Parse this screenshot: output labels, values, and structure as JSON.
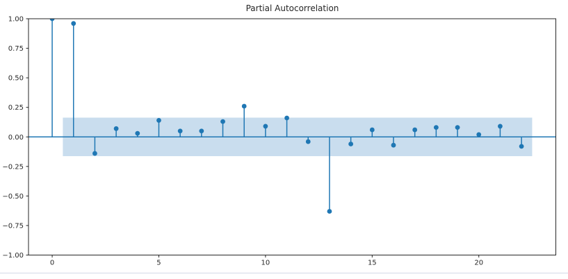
{
  "title": "Partial Autocorrelation",
  "colors": {
    "stem": "#1f77b4",
    "marker": "#1f77b4",
    "band": "#c9ddee",
    "spine": "#262626",
    "tick": "#262626",
    "text": "#262626",
    "background": "#ffffff",
    "window_edge_line": "#dfe3ed"
  },
  "chart_data": {
    "type": "stem",
    "title": "Partial Autocorrelation",
    "x": [
      0,
      1,
      2,
      3,
      4,
      5,
      6,
      7,
      8,
      9,
      10,
      11,
      12,
      13,
      14,
      15,
      16,
      17,
      18,
      19,
      20,
      21,
      22
    ],
    "values": [
      1.0,
      0.96,
      -0.14,
      0.07,
      0.03,
      0.14,
      0.05,
      0.05,
      0.13,
      0.26,
      0.09,
      0.16,
      -0.04,
      -0.63,
      -0.06,
      0.06,
      -0.07,
      0.06,
      0.08,
      0.08,
      0.02,
      0.09,
      -0.08
    ],
    "confidence_band": {
      "lower": -0.163,
      "upper": 0.163,
      "x_start": 0.5,
      "x_end": 22.5
    },
    "xlim": [
      -1.11,
      23.61
    ],
    "ylim": [
      -1.0,
      1.0
    ],
    "x_ticks": [
      0,
      5,
      10,
      15,
      20
    ],
    "x_tick_labels": [
      "0",
      "5",
      "10",
      "15",
      "20"
    ],
    "y_ticks": [
      1.0,
      0.75,
      0.5,
      0.25,
      0.0,
      -0.25,
      -0.5,
      -0.75,
      -1.0
    ],
    "y_tick_labels": [
      "1.00",
      "0.75",
      "0.50",
      "0.25",
      "0.00",
      "−0.25",
      "−0.50",
      "−0.75",
      "−1.00"
    ],
    "grid": false,
    "legend": null
  }
}
